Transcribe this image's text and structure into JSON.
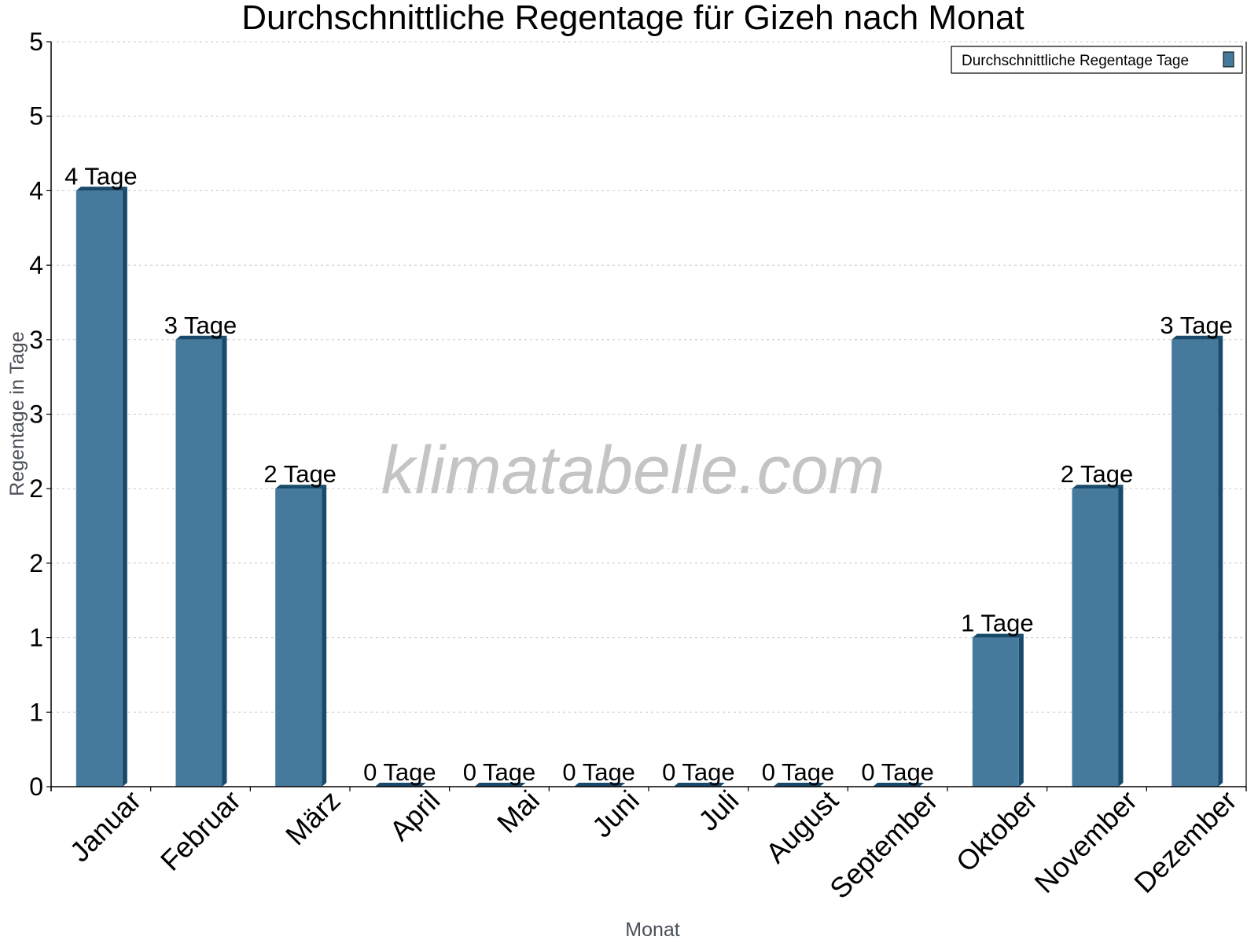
{
  "chart_data": {
    "type": "bar",
    "title": "Durchschnittliche Regentage für Gizeh nach Monat",
    "xlabel": "Monat",
    "ylabel": "Regentage in Tage",
    "categories": [
      "Januar",
      "Februar",
      "März",
      "April",
      "Mai",
      "Juni",
      "Juli",
      "August",
      "September",
      "Oktober",
      "November",
      "Dezember"
    ],
    "series": [
      {
        "name": "Durchschnittliche Regentage Tage",
        "values": [
          4,
          3,
          2,
          0,
          0,
          0,
          0,
          0,
          0,
          1,
          2,
          3
        ],
        "value_labels": [
          "4 Tage",
          "3 Tage",
          "2 Tage",
          "0 Tage",
          "0 Tage",
          "0 Tage",
          "0 Tage",
          "0 Tage",
          "0 Tage",
          "1 Tage",
          "2 Tage",
          "3 Tage"
        ],
        "color": "#467a9c",
        "side_color": "#1a4a6b"
      }
    ],
    "ylim": [
      0,
      5
    ],
    "yticks": [
      0,
      0.5,
      1,
      1.5,
      2,
      2.5,
      3,
      3.5,
      4,
      4.5,
      5
    ],
    "ytick_labels": [
      "0",
      "1",
      "1",
      "2",
      "2",
      "3",
      "3",
      "4",
      "4",
      "5",
      "5"
    ],
    "grid": true,
    "legend_position": "top-right",
    "x_tick_rotation": -45
  },
  "watermark": "klimatabelle.com",
  "colors": {
    "bar_front": "#467a9c",
    "bar_side": "#1a4a6b",
    "grid": "#c8c8c8",
    "axis": "#000000",
    "axis_title": "#4a5058",
    "watermark": "#c4c4c4"
  }
}
